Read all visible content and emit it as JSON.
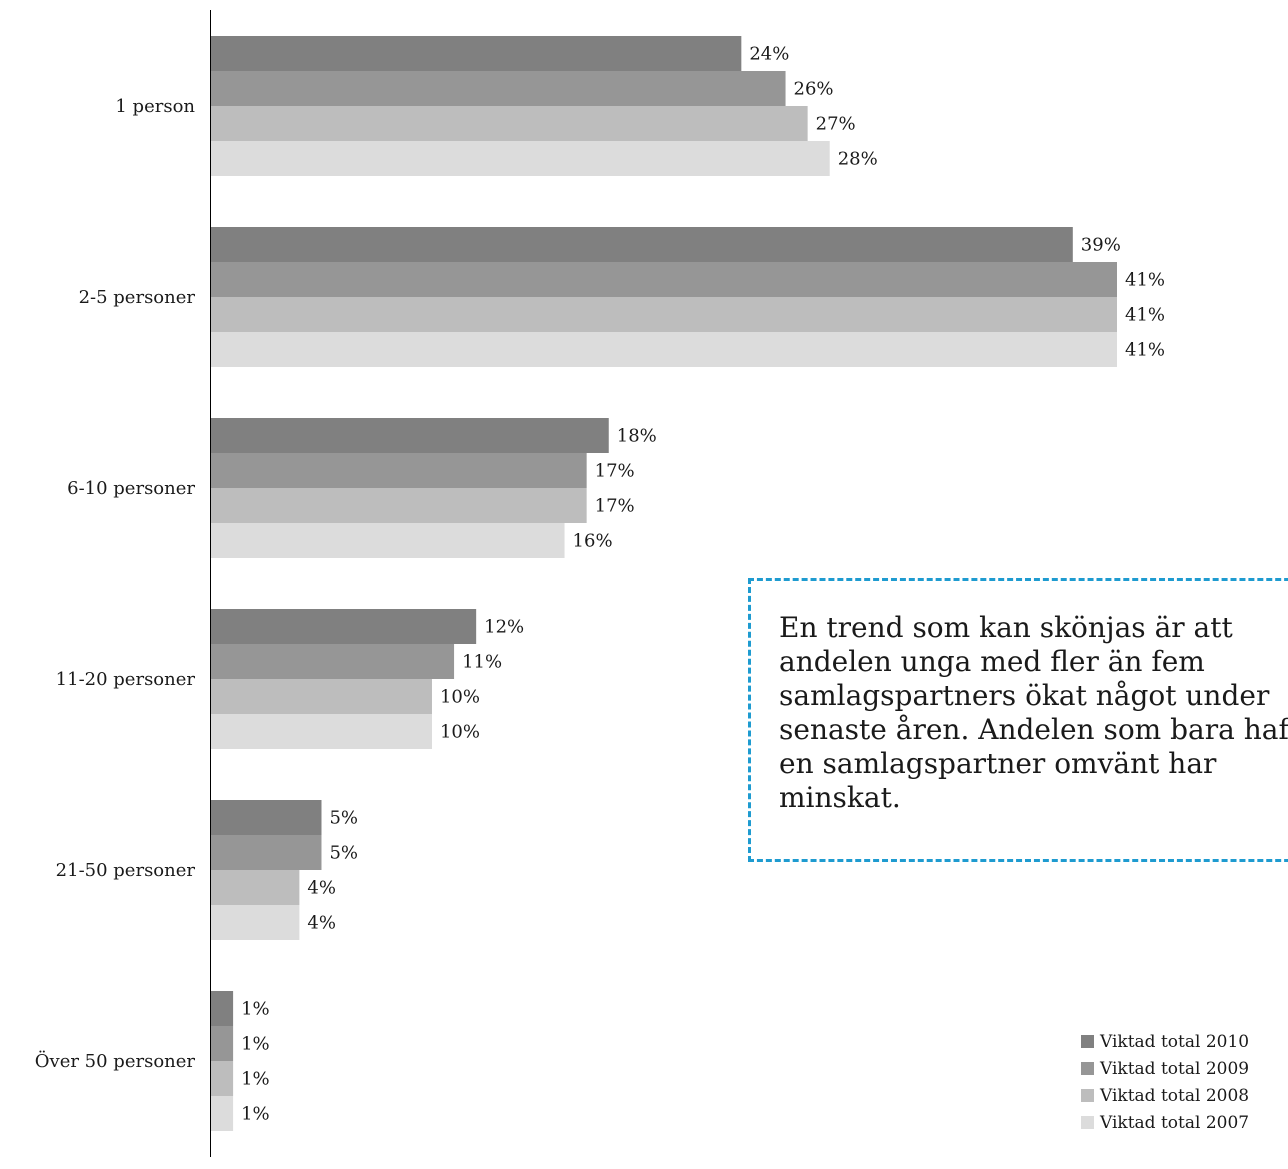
{
  "chart_data": {
    "type": "bar",
    "orientation": "horizontal",
    "categories": [
      "1 person",
      "2-5 personer",
      "6-10 personer",
      "11-20 personer",
      "21-50 personer",
      "Över 50 personer"
    ],
    "series": [
      {
        "name": "Viktad total 2010",
        "color": "#808080",
        "values": [
          24,
          39,
          18,
          12,
          5,
          1
        ],
        "labels": [
          "24%",
          "39%",
          "18%",
          "12%",
          "5%",
          "1%"
        ]
      },
      {
        "name": "Viktad total 2009",
        "color": "#969696",
        "values": [
          26,
          41,
          17,
          11,
          5,
          1
        ],
        "labels": [
          "26%",
          "41%",
          "17%",
          "11%",
          "5%",
          "1%"
        ]
      },
      {
        "name": "Viktad total 2008",
        "color": "#bdbdbd",
        "values": [
          27,
          41,
          17,
          10,
          4,
          1
        ],
        "labels": [
          "27%",
          "41%",
          "17%",
          "10%",
          "4%",
          "1%"
        ]
      },
      {
        "name": "Viktad total 2007",
        "color": "#dcdcdc",
        "values": [
          28,
          41,
          16,
          10,
          4,
          1
        ],
        "labels": [
          "28%",
          "41%",
          "16%",
          "10%",
          "4%",
          "1%"
        ]
      }
    ],
    "unit": "%",
    "xlim": [
      0,
      41
    ],
    "grid": false,
    "legend_position": "bottom-right",
    "annotation": "En trend som kan skönjas är att andelen unga med fler än fem samlagspartners ökat något under senaste åren. Andelen som bara haft en samlagspartner omvänt har minskat."
  }
}
